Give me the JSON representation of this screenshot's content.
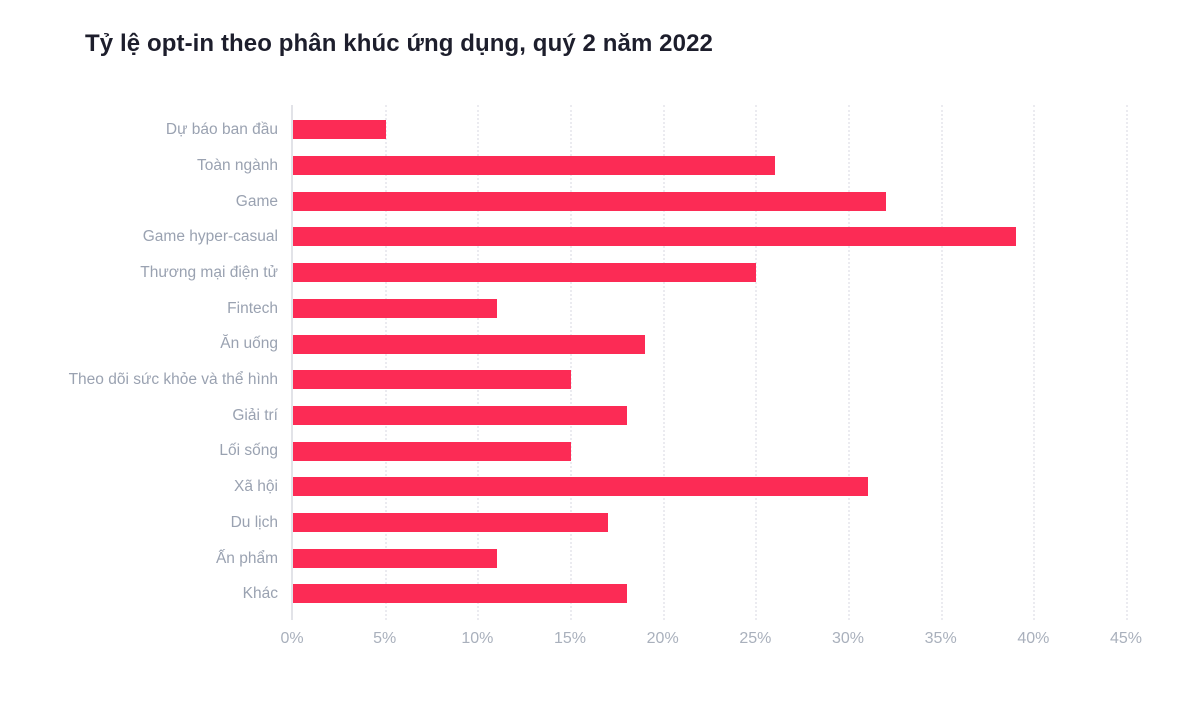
{
  "page": {
    "background": "#ffffff"
  },
  "chart_data": {
    "type": "bar",
    "orientation": "horizontal",
    "title": "Tỷ lệ opt-in theo phân khúc ứng dụng, quý 2 năm 2022",
    "categories": [
      "Dự báo ban đầu",
      "Toàn ngành",
      "Game",
      "Game hyper-casual",
      "Thương mại điện tử",
      "Fintech",
      "Ăn uống",
      "Theo dõi sức khỏe và thể hình",
      "Giải trí",
      "Lối sống",
      "Xã hội",
      "Du lịch",
      "Ấn phẩm",
      "Khác"
    ],
    "values": [
      5,
      26,
      32,
      39,
      25,
      11,
      19,
      15,
      18,
      15,
      31,
      17,
      11,
      18
    ],
    "unit": "%",
    "xlabel": "",
    "ylabel": "",
    "x_ticks": [
      "0%",
      "5%",
      "10%",
      "15%",
      "20%",
      "25%",
      "30%",
      "35%",
      "40%",
      "45%"
    ],
    "xlim": [
      0,
      45
    ],
    "x_tick_step": 5,
    "grid": "dotted-vertical",
    "legend": "none",
    "colors": {
      "bar": "#FC2B55",
      "bar_border": "rgba(252,43,85,0.35)",
      "title": "#1D1E2C",
      "category_label": "#9AA2B1",
      "tick_label": "#A9B0BC",
      "axis_line": "#E2E3E8",
      "gridline": "#EBEBF0"
    }
  }
}
